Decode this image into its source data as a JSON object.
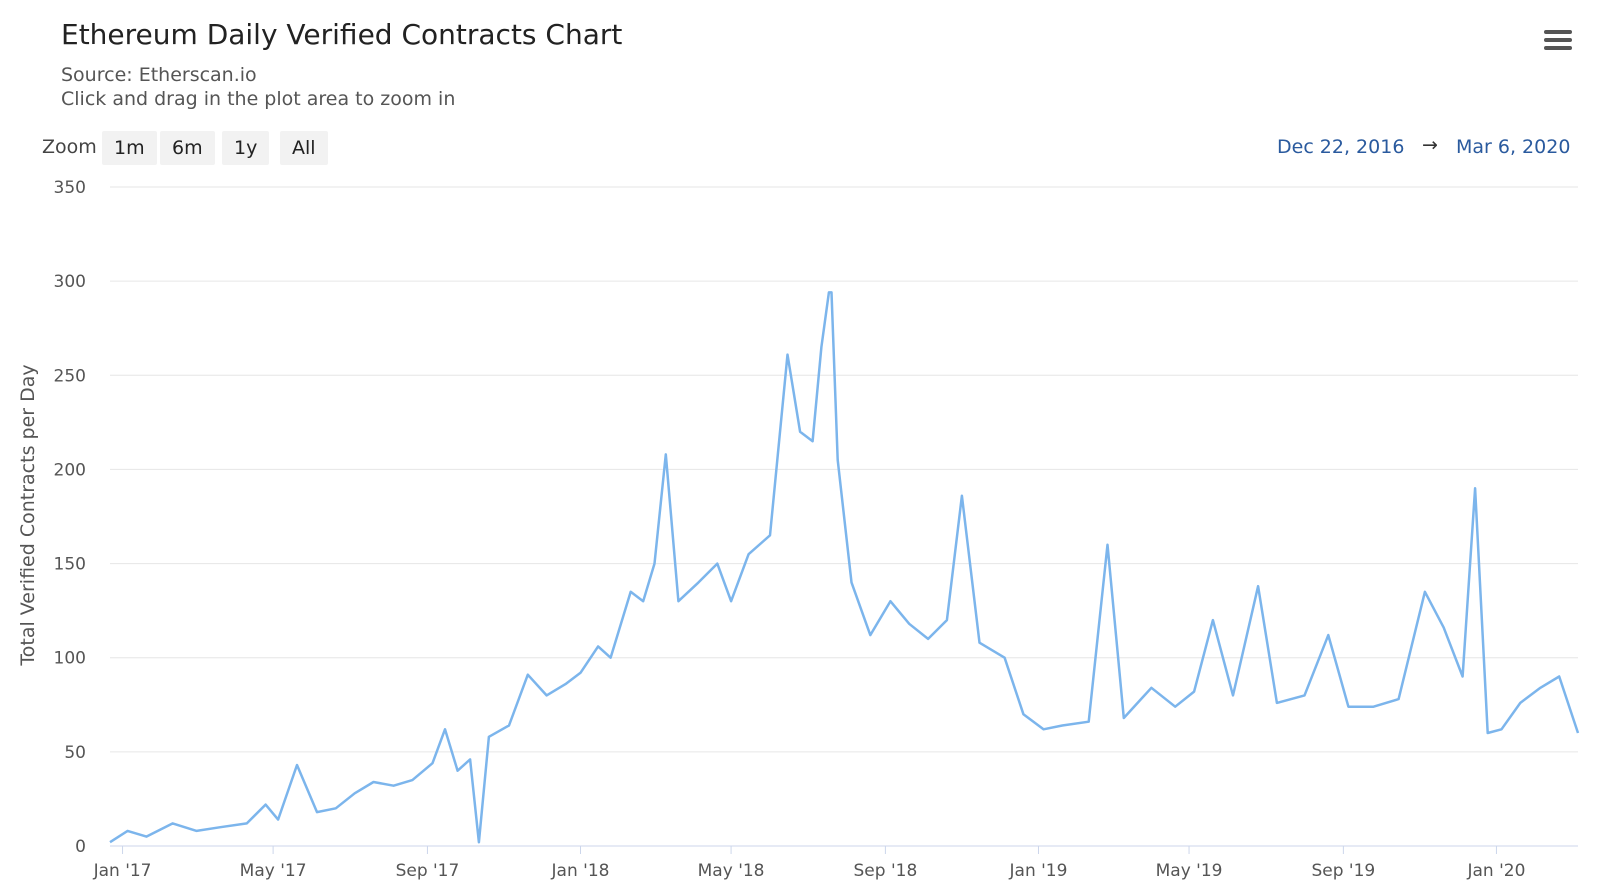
{
  "header": {
    "title": "Ethereum Daily Verified Contracts Chart",
    "source": "Source: Etherscan.io",
    "hint": "Click and drag in the plot area to zoom in",
    "menu_icon": "hamburger-menu-icon"
  },
  "zoom": {
    "label": "Zoom",
    "buttons": [
      "1m",
      "6m",
      "1y",
      "All"
    ]
  },
  "range": {
    "from": "Dec 22, 2016",
    "arrow": "→",
    "to": "Mar 6, 2020"
  },
  "colors": {
    "series": "#7cb5ec",
    "grid": "#e6e6e6",
    "range_text": "#2a5a9e"
  },
  "chart_data": {
    "type": "line",
    "title": "Ethereum Daily Verified Contracts Chart",
    "subtitle": "Source: Etherscan.io",
    "xlabel": "",
    "ylabel": "Total Verified Contracts per Day",
    "xlim": [
      "2016-12-22",
      "2020-03-06"
    ],
    "ylim": [
      0,
      350
    ],
    "yticks": [
      0,
      50,
      100,
      150,
      200,
      250,
      300,
      350
    ],
    "xticks": [
      {
        "date": "2017-01-01",
        "label": "Jan '17"
      },
      {
        "date": "2017-05-01",
        "label": "May '17"
      },
      {
        "date": "2017-09-01",
        "label": "Sep '17"
      },
      {
        "date": "2018-01-01",
        "label": "Jan '18"
      },
      {
        "date": "2018-05-01",
        "label": "May '18"
      },
      {
        "date": "2018-09-01",
        "label": "Sep '18"
      },
      {
        "date": "2019-01-01",
        "label": "Jan '19"
      },
      {
        "date": "2019-05-01",
        "label": "May '19"
      },
      {
        "date": "2019-09-01",
        "label": "Sep '19"
      },
      {
        "date": "2020-01-01",
        "label": "Jan '20"
      }
    ],
    "grid": true,
    "legend": "none",
    "series": [
      {
        "color": "#7cb5ec",
        "points": [
          [
            "2016-12-22",
            2
          ],
          [
            "2017-01-05",
            8
          ],
          [
            "2017-01-20",
            5
          ],
          [
            "2017-02-10",
            12
          ],
          [
            "2017-03-01",
            8
          ],
          [
            "2017-03-20",
            10
          ],
          [
            "2017-04-10",
            12
          ],
          [
            "2017-04-25",
            22
          ],
          [
            "2017-05-05",
            14
          ],
          [
            "2017-05-20",
            43
          ],
          [
            "2017-06-05",
            18
          ],
          [
            "2017-06-20",
            20
          ],
          [
            "2017-07-05",
            28
          ],
          [
            "2017-07-20",
            34
          ],
          [
            "2017-08-05",
            32
          ],
          [
            "2017-08-20",
            35
          ],
          [
            "2017-09-05",
            44
          ],
          [
            "2017-09-15",
            62
          ],
          [
            "2017-09-25",
            40
          ],
          [
            "2017-10-05",
            46
          ],
          [
            "2017-10-12",
            2
          ],
          [
            "2017-10-20",
            58
          ],
          [
            "2017-11-05",
            64
          ],
          [
            "2017-11-20",
            91
          ],
          [
            "2017-12-05",
            80
          ],
          [
            "2017-12-20",
            86
          ],
          [
            "2018-01-01",
            92
          ],
          [
            "2018-01-15",
            106
          ],
          [
            "2018-01-25",
            100
          ],
          [
            "2018-02-10",
            135
          ],
          [
            "2018-02-20",
            130
          ],
          [
            "2018-03-01",
            150
          ],
          [
            "2018-03-10",
            208
          ],
          [
            "2018-03-20",
            130
          ],
          [
            "2018-04-05",
            140
          ],
          [
            "2018-04-20",
            150
          ],
          [
            "2018-05-01",
            130
          ],
          [
            "2018-05-15",
            155
          ],
          [
            "2018-06-01",
            165
          ],
          [
            "2018-06-15",
            261
          ],
          [
            "2018-06-25",
            220
          ],
          [
            "2018-07-05",
            215
          ],
          [
            "2018-07-12",
            265
          ],
          [
            "2018-07-18",
            294
          ],
          [
            "2018-07-20",
            294
          ],
          [
            "2018-07-25",
            205
          ],
          [
            "2018-08-05",
            140
          ],
          [
            "2018-08-20",
            112
          ],
          [
            "2018-09-05",
            130
          ],
          [
            "2018-09-20",
            118
          ],
          [
            "2018-10-05",
            110
          ],
          [
            "2018-10-20",
            120
          ],
          [
            "2018-11-01",
            186
          ],
          [
            "2018-11-15",
            108
          ],
          [
            "2018-12-05",
            100
          ],
          [
            "2018-12-20",
            70
          ],
          [
            "2019-01-05",
            62
          ],
          [
            "2019-01-20",
            64
          ],
          [
            "2019-02-10",
            66
          ],
          [
            "2019-02-25",
            160
          ],
          [
            "2019-03-10",
            68
          ],
          [
            "2019-04-01",
            84
          ],
          [
            "2019-04-20",
            74
          ],
          [
            "2019-05-05",
            82
          ],
          [
            "2019-05-20",
            120
          ],
          [
            "2019-06-05",
            80
          ],
          [
            "2019-06-25",
            138
          ],
          [
            "2019-07-10",
            76
          ],
          [
            "2019-08-01",
            80
          ],
          [
            "2019-08-20",
            112
          ],
          [
            "2019-09-05",
            74
          ],
          [
            "2019-09-25",
            74
          ],
          [
            "2019-10-15",
            78
          ],
          [
            "2019-11-05",
            135
          ],
          [
            "2019-11-20",
            116
          ],
          [
            "2019-12-05",
            90
          ],
          [
            "2019-12-15",
            190
          ],
          [
            "2019-12-25",
            60
          ],
          [
            "2020-01-05",
            62
          ],
          [
            "2020-01-20",
            76
          ],
          [
            "2020-02-05",
            84
          ],
          [
            "2020-02-20",
            90
          ],
          [
            "2020-03-06",
            60
          ]
        ]
      }
    ]
  }
}
